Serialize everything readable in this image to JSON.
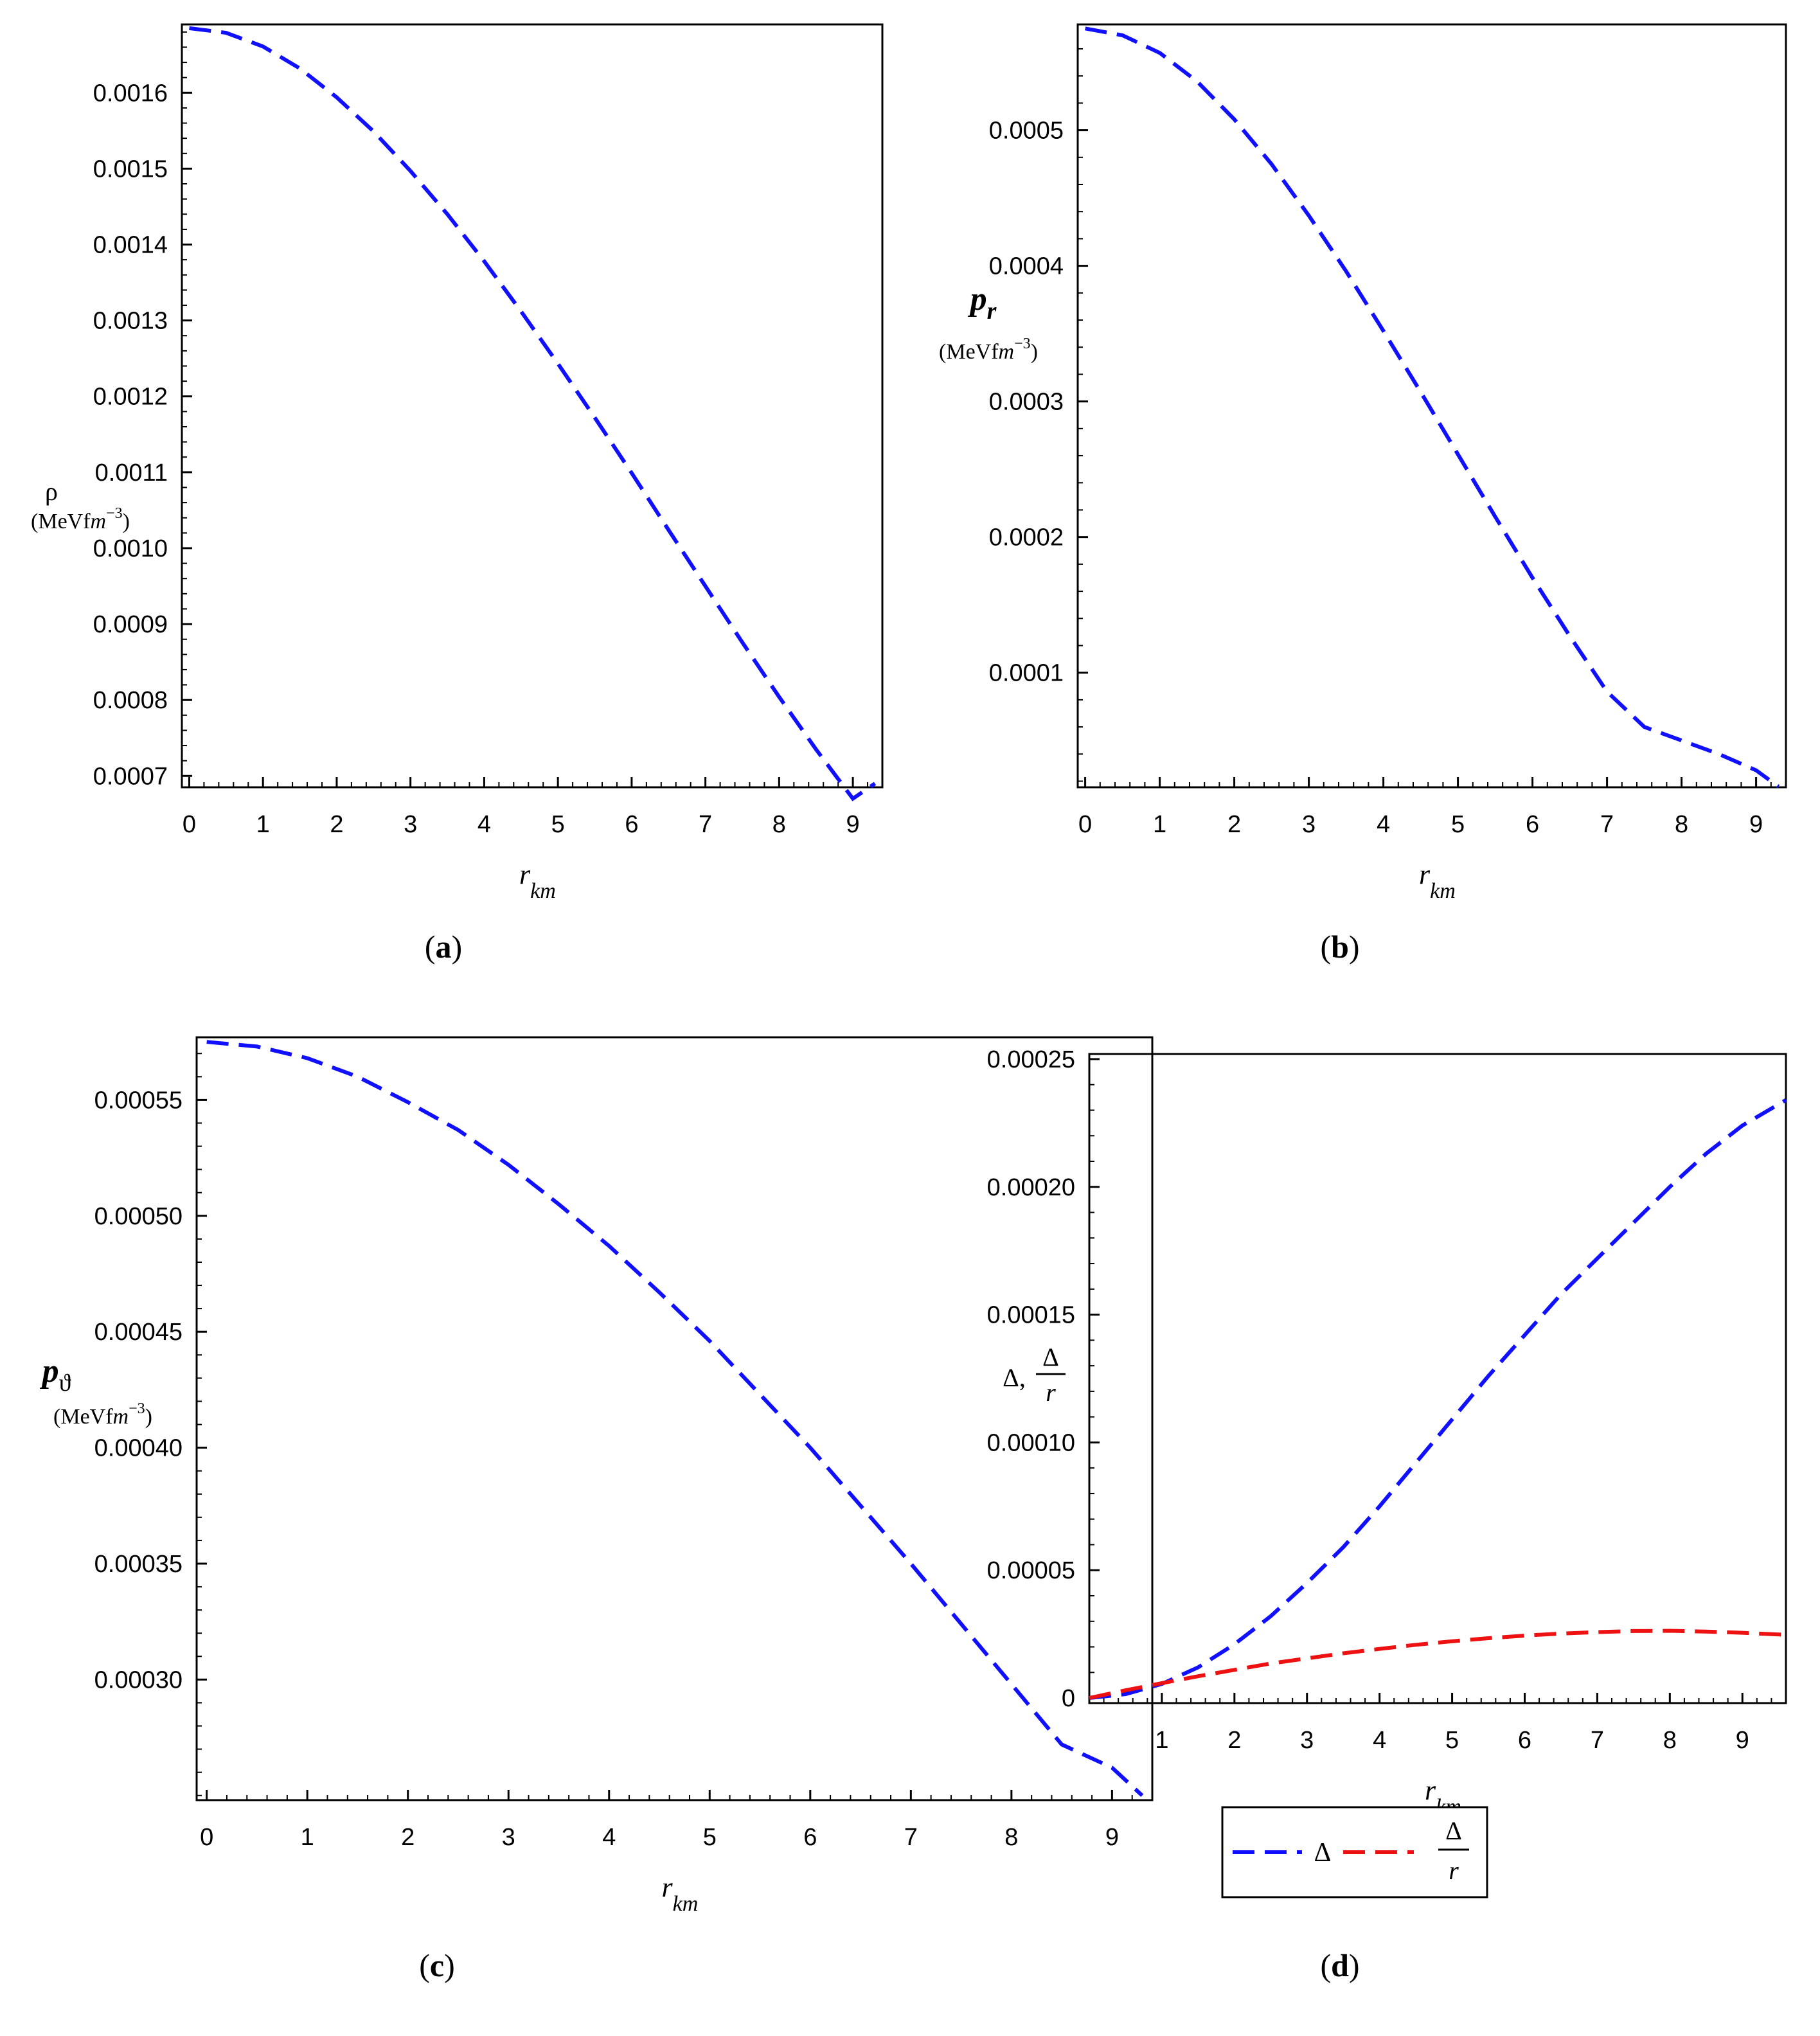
{
  "colors": {
    "blue": "#1010ff",
    "red": "#ee1111",
    "axis": "#000000"
  },
  "chart_data": [
    {
      "type": "line",
      "caption": "(a)",
      "ylabel": {
        "symbol": "ρ",
        "unit_prefix": "(MeVf",
        "unit_m": "m",
        "unit_exp": "−3",
        "unit_close": ")"
      },
      "xlabel": {
        "base": "r",
        "sub": "km"
      },
      "xlim": [
        -0.1,
        9.4
      ],
      "ylim": [
        0.000685,
        0.00169
      ],
      "x_ticks": [
        0,
        1,
        2,
        3,
        4,
        5,
        6,
        7,
        8,
        9
      ],
      "x_tick_labels": [
        "0",
        "1",
        "2",
        "3",
        "4",
        "5",
        "6",
        "7",
        "8",
        "9"
      ],
      "y_ticks": [
        0.0007,
        0.0008,
        0.0009,
        0.001,
        0.0011,
        0.0012,
        0.0013,
        0.0014,
        0.0015,
        0.0016
      ],
      "y_tick_labels": [
        "0.0007",
        "0.0008",
        "0.0009",
        "0.0010",
        "0.0011",
        "0.0012",
        "0.0013",
        "0.0014",
        "0.0015",
        "0.0016"
      ],
      "series": [
        {
          "name": "rho",
          "color": "#1010ff",
          "x": [
            0,
            0.5,
            1,
            1.5,
            2,
            2.5,
            3,
            3.5,
            4,
            4.5,
            5,
            5.5,
            6,
            6.5,
            7,
            7.5,
            8,
            8.5,
            9,
            9.3
          ],
          "y": [
            0.001685,
            0.001679,
            0.001661,
            0.001632,
            0.001594,
            0.001549,
            0.001497,
            0.00144,
            0.001378,
            0.001312,
            0.001243,
            0.001172,
            0.001099,
            0.001024,
            0.00095,
            0.000876,
            0.000804,
            0.000735,
            0.00067,
            0.00069
          ]
        }
      ]
    },
    {
      "type": "line",
      "caption": "(b)",
      "ylabel": {
        "symbol": "p",
        "sub": "r",
        "unit_prefix": "(MeVf",
        "unit_m": "m",
        "unit_exp": "−3",
        "unit_close": ")"
      },
      "xlabel": {
        "base": "r",
        "sub": "km"
      },
      "xlim": [
        -0.1,
        9.4
      ],
      "ylim": [
        1.55e-05,
        0.000578
      ],
      "x_ticks": [
        0,
        1,
        2,
        3,
        4,
        5,
        6,
        7,
        8,
        9
      ],
      "x_tick_labels": [
        "0",
        "1",
        "2",
        "3",
        "4",
        "5",
        "6",
        "7",
        "8",
        "9"
      ],
      "y_ticks": [
        0.0001,
        0.0002,
        0.0003,
        0.0004,
        0.0005
      ],
      "y_tick_labels": [
        "0.0001",
        "0.0002",
        "0.0003",
        "0.0004",
        "0.0005"
      ],
      "series": [
        {
          "name": "p_r",
          "color": "#1010ff",
          "x": [
            0,
            0.5,
            1,
            1.5,
            2,
            2.5,
            3,
            3.5,
            4,
            4.5,
            5,
            5.5,
            6,
            6.5,
            7,
            7.5,
            8,
            8.5,
            9,
            9.3
          ],
          "y": [
            0.000575,
            0.00057,
            0.000557,
            0.000536,
            0.000508,
            0.000475,
            0.000437,
            0.000396,
            0.000352,
            0.000307,
            0.000261,
            0.000215,
            0.00017,
            0.000127,
            8.6e-05,
            6e-05,
            5e-05,
            4e-05,
            2.8e-05,
            1.6e-05
          ]
        }
      ]
    },
    {
      "type": "line",
      "caption": "(c)",
      "ylabel": {
        "symbol": "p",
        "sub": "ϑ",
        "unit_prefix": "(MeVf",
        "unit_m": "m",
        "unit_exp": "−3",
        "unit_close": ")"
      },
      "xlabel": {
        "base": "r",
        "sub": "km"
      },
      "xlim": [
        -0.1,
        9.4
      ],
      "ylim": [
        0.000248,
        0.000577
      ],
      "x_ticks": [
        0,
        1,
        2,
        3,
        4,
        5,
        6,
        7,
        8,
        9
      ],
      "x_tick_labels": [
        "0",
        "1",
        "2",
        "3",
        "4",
        "5",
        "6",
        "7",
        "8",
        "9"
      ],
      "y_ticks": [
        0.0003,
        0.00035,
        0.0004,
        0.00045,
        0.0005,
        0.00055
      ],
      "y_tick_labels": [
        "0.00030",
        "0.00035",
        "0.00040",
        "0.00045",
        "0.00050",
        "0.00055"
      ],
      "series": [
        {
          "name": "p_theta",
          "color": "#1010ff",
          "x": [
            0,
            0.5,
            1,
            1.5,
            2,
            2.5,
            3,
            3.5,
            4,
            4.5,
            5,
            5.5,
            6,
            6.5,
            7,
            7.5,
            8,
            8.5,
            9,
            9.3
          ],
          "y": [
            0.000575,
            0.000573,
            0.000568,
            0.00056,
            0.000549,
            0.000537,
            0.000522,
            0.000505,
            0.000487,
            0.000467,
            0.000446,
            0.000423,
            0.0004,
            0.000375,
            0.00035,
            0.000324,
            0.000298,
            0.000272,
            0.000262,
            0.00025
          ]
        }
      ]
    },
    {
      "type": "line",
      "caption": "(d)",
      "ylabel": {
        "delta": "Δ,",
        "frac_num": "Δ",
        "frac_den": "r"
      },
      "xlabel": {
        "base": "r",
        "sub": "km"
      },
      "xlim": [
        0,
        9.6
      ],
      "ylim": [
        -2e-06,
        0.000252
      ],
      "x_ticks": [
        1,
        2,
        3,
        4,
        5,
        6,
        7,
        8,
        9
      ],
      "x_tick_labels": [
        "1",
        "2",
        "3",
        "4",
        "5",
        "6",
        "7",
        "8",
        "9"
      ],
      "y_ticks": [
        0,
        5e-05,
        0.0001,
        0.00015,
        0.0002,
        0.00025
      ],
      "y_tick_labels": [
        "0",
        "0.00005",
        "0.00010",
        "0.00015",
        "0.00020",
        "0.00025"
      ],
      "legend": {
        "placement": "below",
        "entries": [
          {
            "label": "Δ",
            "color": "#1010ff"
          },
          {
            "frac_num": "Δ",
            "frac_den": "r",
            "color": "#ee1111"
          }
        ]
      },
      "series": [
        {
          "name": "Delta",
          "color": "#1010ff",
          "x": [
            0,
            0.5,
            1,
            1.5,
            2,
            2.5,
            3,
            3.5,
            4,
            4.5,
            5,
            5.5,
            6,
            6.5,
            7,
            7.5,
            8,
            8.5,
            9,
            9.6
          ],
          "y": [
            0,
            1.5e-06,
            5.5e-06,
            1.2e-05,
            2.1e-05,
            3.2e-05,
            4.5e-05,
            5.9e-05,
            7.5e-05,
            9.2e-05,
            0.000109,
            0.000126,
            0.000142,
            0.000158,
            0.000172,
            0.000186,
            0.0002,
            0.000213,
            0.000224,
            0.000234
          ]
        },
        {
          "name": "Delta/r",
          "color": "#ee1111",
          "x": [
            0,
            0.5,
            1,
            1.5,
            2,
            2.5,
            3,
            3.5,
            4,
            4.5,
            5,
            5.5,
            6,
            6.5,
            7,
            7.5,
            8,
            8.5,
            9,
            9.6
          ],
          "y": [
            0,
            3e-06,
            5.8e-06,
            8.5e-06,
            1.1e-05,
            1.35e-05,
            1.55e-05,
            1.75e-05,
            1.92e-05,
            2.08e-05,
            2.22e-05,
            2.34e-05,
            2.44e-05,
            2.52e-05,
            2.58e-05,
            2.62e-05,
            2.63e-05,
            2.6e-05,
            2.55e-05,
            2.47e-05
          ]
        }
      ]
    }
  ]
}
